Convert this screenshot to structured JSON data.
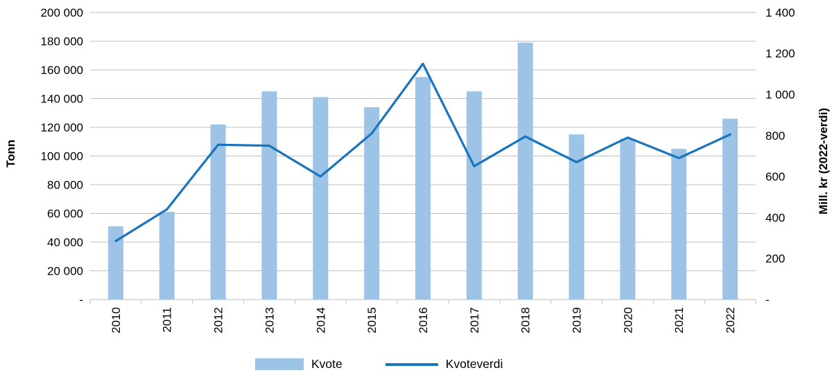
{
  "chart_data": {
    "type": "bar-line-combo",
    "categories": [
      "2010",
      "2011",
      "2012",
      "2013",
      "2014",
      "2015",
      "2016",
      "2017",
      "2018",
      "2019",
      "2020",
      "2021",
      "2022"
    ],
    "series": [
      {
        "name": "Kvote",
        "type": "bar",
        "axis": "left",
        "color": "#9DC3E6",
        "values": [
          51000,
          61000,
          122000,
          145000,
          141000,
          134000,
          155000,
          145000,
          179000,
          115000,
          112000,
          105000,
          126000
        ]
      },
      {
        "name": "Kvoteverdi",
        "type": "line",
        "axis": "right",
        "color": "#1B75BC",
        "values": [
          285,
          440,
          755,
          750,
          600,
          810,
          1150,
          650,
          795,
          670,
          790,
          690,
          805
        ]
      }
    ],
    "left_axis": {
      "label": "Tonn",
      "min": 0,
      "max": 200000,
      "tick_step": 20000,
      "zero_label": "-",
      "tick_labels": [
        "-",
        "20 000",
        "40 000",
        "60 000",
        "80 000",
        "100 000",
        "120 000",
        "140 000",
        "160 000",
        "180 000",
        "200 000"
      ]
    },
    "right_axis": {
      "label": "Mill. kr (2022-verdi)",
      "min": 0,
      "max": 1400,
      "tick_step": 200,
      "zero_label": "-",
      "tick_labels": [
        "-",
        "200",
        "400",
        "600",
        "800",
        "1 000",
        "1 200",
        "1 400"
      ]
    },
    "grid": {
      "visible": true,
      "color": "#BFBFBF"
    },
    "legend_position": "bottom",
    "text_color": "#000000"
  }
}
